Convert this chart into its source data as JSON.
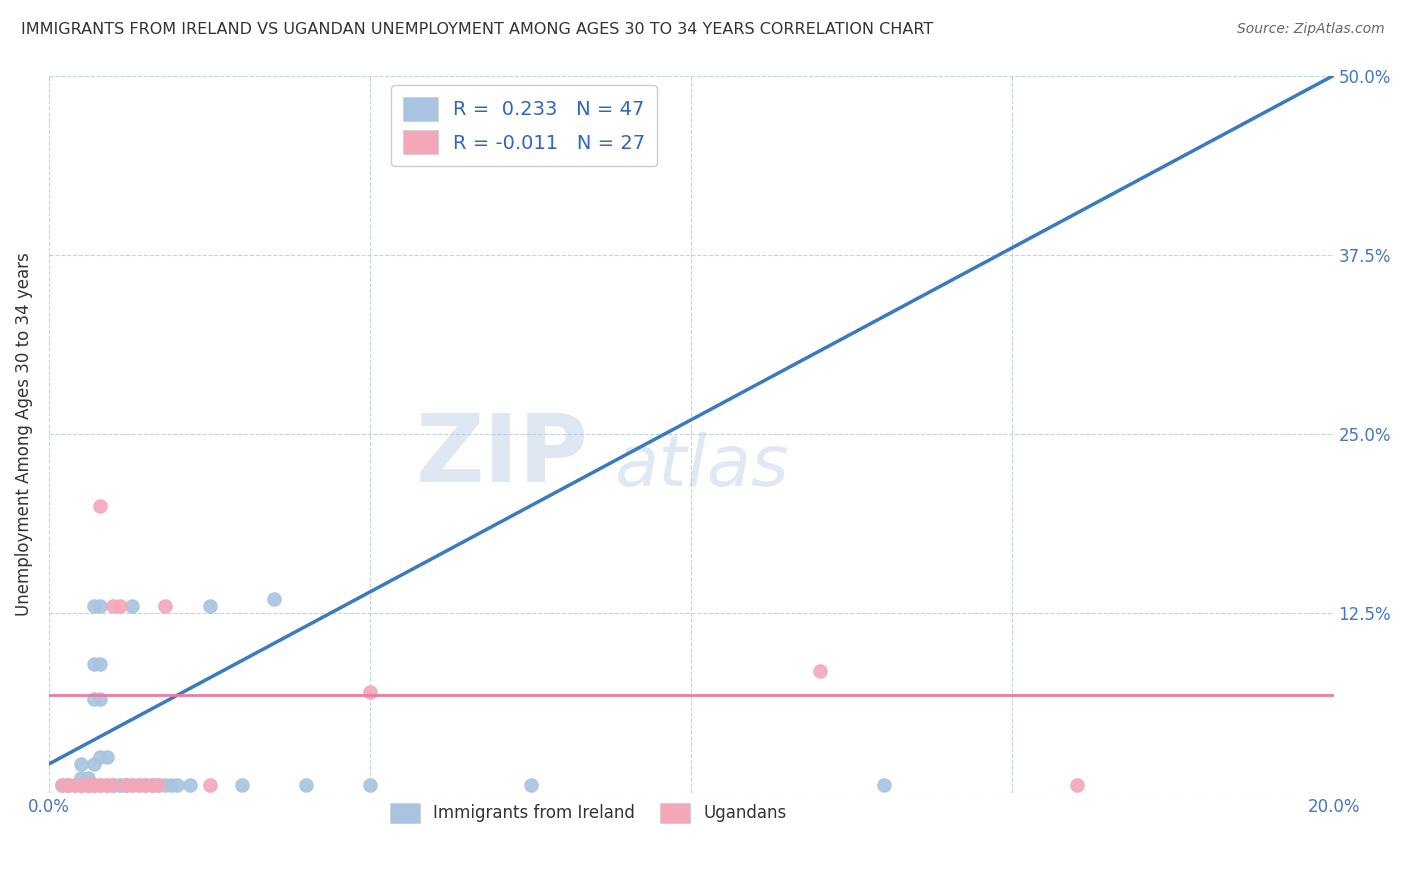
{
  "title": "IMMIGRANTS FROM IRELAND VS UGANDAN UNEMPLOYMENT AMONG AGES 30 TO 34 YEARS CORRELATION CHART",
  "source": "Source: ZipAtlas.com",
  "ylabel": "Unemployment Among Ages 30 to 34 years",
  "xlim": [
    0.0,
    0.2
  ],
  "ylim": [
    0.0,
    0.5
  ],
  "xticks": [
    0.0,
    0.05,
    0.1,
    0.15,
    0.2
  ],
  "xtick_labels": [
    "0.0%",
    "",
    "",
    "",
    "20.0%"
  ],
  "ytick_labels": [
    "",
    "12.5%",
    "25.0%",
    "37.5%",
    "50.0%"
  ],
  "yticks": [
    0.0,
    0.125,
    0.25,
    0.375,
    0.5
  ],
  "r_ireland": 0.233,
  "n_ireland": 47,
  "r_uganda": -0.011,
  "n_uganda": 27,
  "color_ireland": "#a8c4e0",
  "color_uganda": "#f4a7b9",
  "line_color_ireland": "#3a7abf",
  "line_color_uganda": "#e87da0",
  "watermark_zip": "ZIP",
  "watermark_atlas": "atlas",
  "ireland_line_x0": 0.0,
  "ireland_line_y0": 0.02,
  "ireland_line_x1": 0.2,
  "ireland_line_y1": 0.5,
  "uganda_line_x0": 0.0,
  "uganda_line_y0": 0.068,
  "uganda_line_x1": 0.2,
  "uganda_line_y1": 0.068,
  "dashed_line_x0": 0.0,
  "dashed_line_y0": 0.02,
  "dashed_line_x1": 0.2,
  "dashed_line_y1": 0.5,
  "scatter_ireland": [
    [
      0.002,
      0.005
    ],
    [
      0.003,
      0.005
    ],
    [
      0.003,
      0.005
    ],
    [
      0.004,
      0.005
    ],
    [
      0.004,
      0.005
    ],
    [
      0.005,
      0.005
    ],
    [
      0.005,
      0.01
    ],
    [
      0.005,
      0.02
    ],
    [
      0.006,
      0.005
    ],
    [
      0.006,
      0.01
    ],
    [
      0.007,
      0.005
    ],
    [
      0.007,
      0.02
    ],
    [
      0.007,
      0.065
    ],
    [
      0.007,
      0.09
    ],
    [
      0.007,
      0.13
    ],
    [
      0.008,
      0.005
    ],
    [
      0.008,
      0.025
    ],
    [
      0.008,
      0.065
    ],
    [
      0.008,
      0.09
    ],
    [
      0.008,
      0.13
    ],
    [
      0.009,
      0.005
    ],
    [
      0.009,
      0.025
    ],
    [
      0.01,
      0.005
    ],
    [
      0.01,
      0.005
    ],
    [
      0.011,
      0.005
    ],
    [
      0.011,
      0.005
    ],
    [
      0.012,
      0.005
    ],
    [
      0.012,
      0.005
    ],
    [
      0.013,
      0.005
    ],
    [
      0.013,
      0.13
    ],
    [
      0.014,
      0.005
    ],
    [
      0.015,
      0.005
    ],
    [
      0.015,
      0.005
    ],
    [
      0.016,
      0.005
    ],
    [
      0.016,
      0.005
    ],
    [
      0.017,
      0.005
    ],
    [
      0.018,
      0.005
    ],
    [
      0.019,
      0.005
    ],
    [
      0.02,
      0.005
    ],
    [
      0.022,
      0.005
    ],
    [
      0.025,
      0.13
    ],
    [
      0.03,
      0.005
    ],
    [
      0.035,
      0.135
    ],
    [
      0.04,
      0.005
    ],
    [
      0.05,
      0.005
    ],
    [
      0.075,
      0.005
    ],
    [
      0.13,
      0.005
    ]
  ],
  "scatter_uganda": [
    [
      0.002,
      0.005
    ],
    [
      0.003,
      0.005
    ],
    [
      0.004,
      0.005
    ],
    [
      0.005,
      0.005
    ],
    [
      0.005,
      0.005
    ],
    [
      0.006,
      0.005
    ],
    [
      0.006,
      0.005
    ],
    [
      0.007,
      0.005
    ],
    [
      0.007,
      0.005
    ],
    [
      0.008,
      0.005
    ],
    [
      0.008,
      0.2
    ],
    [
      0.009,
      0.005
    ],
    [
      0.009,
      0.005
    ],
    [
      0.01,
      0.005
    ],
    [
      0.01,
      0.13
    ],
    [
      0.011,
      0.13
    ],
    [
      0.012,
      0.005
    ],
    [
      0.013,
      0.005
    ],
    [
      0.014,
      0.005
    ],
    [
      0.015,
      0.005
    ],
    [
      0.016,
      0.005
    ],
    [
      0.017,
      0.005
    ],
    [
      0.018,
      0.13
    ],
    [
      0.025,
      0.005
    ],
    [
      0.05,
      0.07
    ],
    [
      0.12,
      0.085
    ],
    [
      0.16,
      0.005
    ]
  ]
}
